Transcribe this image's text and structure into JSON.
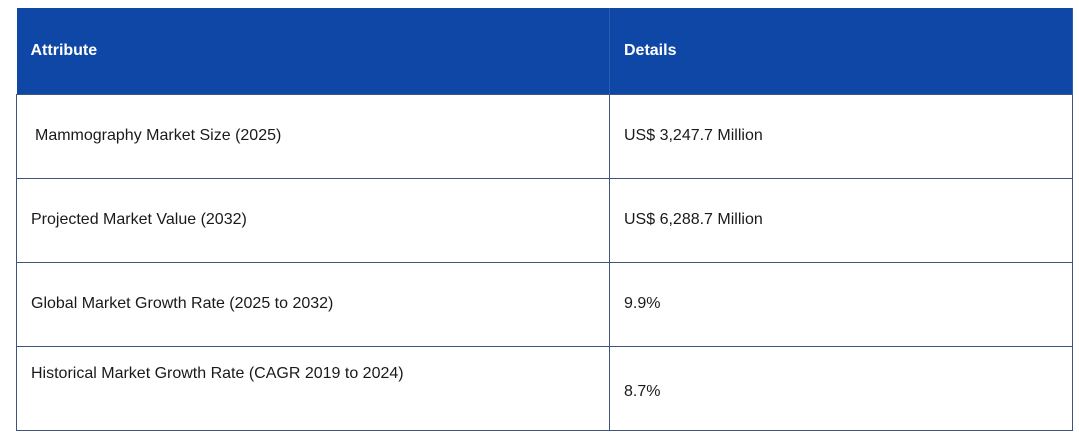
{
  "table": {
    "header": [
      "Attribute",
      "Details"
    ],
    "rows": [
      [
        "Mammography Market Size (2025)",
        "US$ 3,247.7 Million"
      ],
      [
        "Projected Market Value (2032)",
        "US$ 6,288.7 Million"
      ],
      [
        "Global Market Growth Rate (2025 to 2032)",
        "9.9%"
      ],
      [
        "Historical Market Growth Rate (CAGR 2019 to 2024)",
        "8.7%"
      ]
    ]
  }
}
